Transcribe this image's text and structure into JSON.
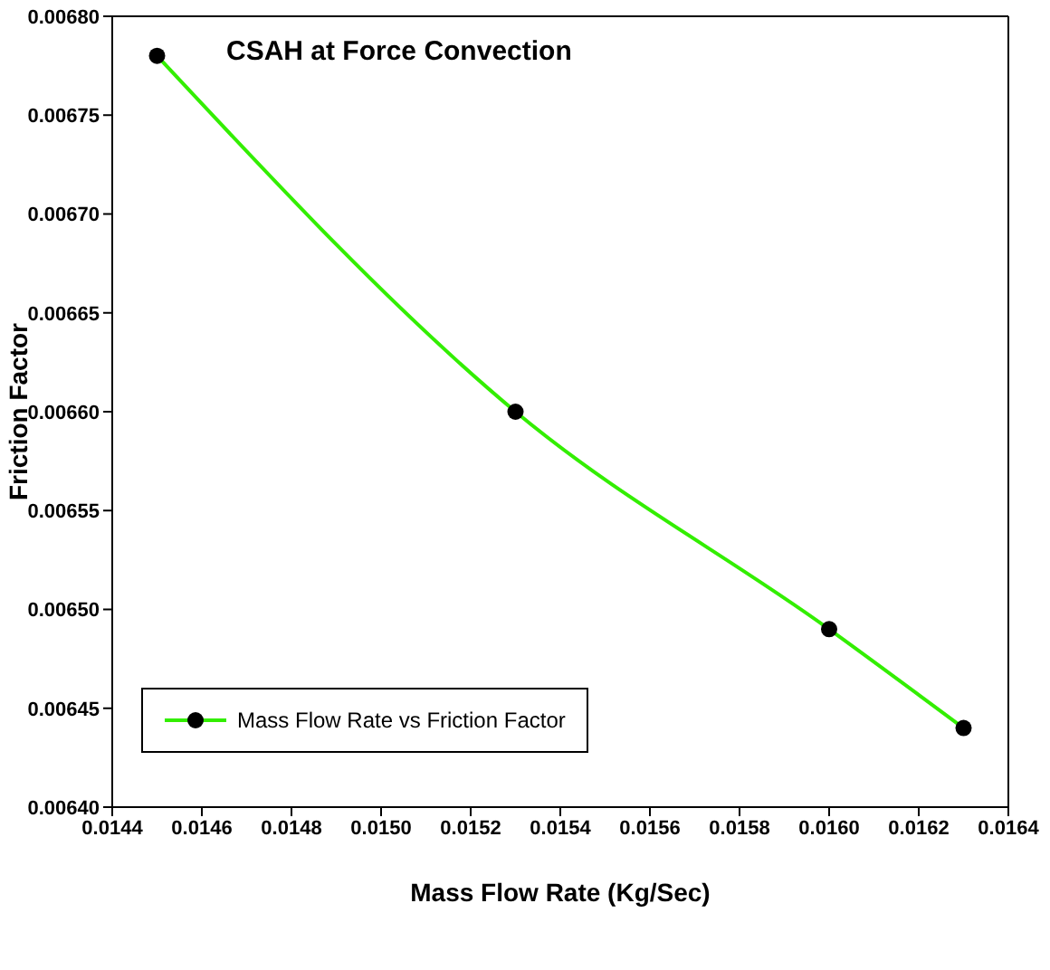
{
  "chart_data": {
    "type": "line",
    "title": "CSAH at Force Convection",
    "xlabel": "Mass Flow Rate (Kg/Sec)",
    "ylabel": "Friction Factor",
    "x": [
      0.0145,
      0.0153,
      0.016,
      0.0163
    ],
    "series": [
      {
        "name": "Mass Flow Rate vs Friction Factor",
        "color": "#33ee00",
        "values": [
          0.00678,
          0.0066,
          0.00649,
          0.00644
        ]
      }
    ],
    "xlim": [
      0.0144,
      0.0164
    ],
    "xticks": [
      {
        "value": 0.0144,
        "label": "0.0144"
      },
      {
        "value": 0.0146,
        "label": "0.0146"
      },
      {
        "value": 0.0148,
        "label": "0.0148"
      },
      {
        "value": 0.015,
        "label": "0.0150"
      },
      {
        "value": 0.0152,
        "label": "0.0152"
      },
      {
        "value": 0.0154,
        "label": "0.0154"
      },
      {
        "value": 0.0156,
        "label": "0.0156"
      },
      {
        "value": 0.0158,
        "label": "0.0158"
      },
      {
        "value": 0.016,
        "label": "0.0160"
      },
      {
        "value": 0.0162,
        "label": "0.0162"
      },
      {
        "value": 0.0164,
        "label": "0.0164"
      }
    ],
    "ylim": [
      0.0064,
      0.0068
    ],
    "yticks": [
      {
        "value": 0.0064,
        "label": "0.00640"
      },
      {
        "value": 0.00645,
        "label": "0.00645"
      },
      {
        "value": 0.0065,
        "label": "0.00650"
      },
      {
        "value": 0.00655,
        "label": "0.00655"
      },
      {
        "value": 0.0066,
        "label": "0.00660"
      },
      {
        "value": 0.00665,
        "label": "0.00665"
      },
      {
        "value": 0.0067,
        "label": "0.00670"
      },
      {
        "value": 0.00675,
        "label": "0.00675"
      },
      {
        "value": 0.0068,
        "label": "0.00680"
      }
    ],
    "marker": "circle",
    "line_style": "solid",
    "legend": "left"
  }
}
